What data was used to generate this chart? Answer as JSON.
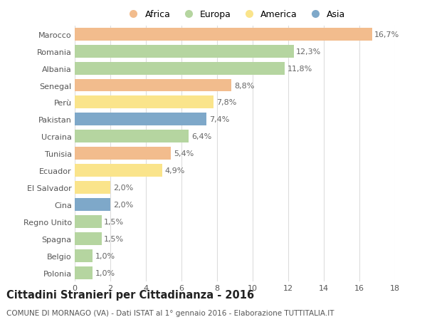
{
  "countries": [
    "Marocco",
    "Romania",
    "Albania",
    "Senegal",
    "Perù",
    "Pakistan",
    "Ucraina",
    "Tunisia",
    "Ecuador",
    "El Salvador",
    "Cina",
    "Regno Unito",
    "Spagna",
    "Belgio",
    "Polonia"
  ],
  "values": [
    16.7,
    12.3,
    11.8,
    8.8,
    7.8,
    7.4,
    6.4,
    5.4,
    4.9,
    2.0,
    2.0,
    1.5,
    1.5,
    1.0,
    1.0
  ],
  "labels": [
    "16,7%",
    "12,3%",
    "11,8%",
    "8,8%",
    "7,8%",
    "7,4%",
    "6,4%",
    "5,4%",
    "4,9%",
    "2,0%",
    "2,0%",
    "1,5%",
    "1,5%",
    "1,0%",
    "1,0%"
  ],
  "continents": [
    "Africa",
    "Europa",
    "Europa",
    "Africa",
    "America",
    "Asia",
    "Europa",
    "Africa",
    "America",
    "America",
    "Asia",
    "Europa",
    "Europa",
    "Europa",
    "Europa"
  ],
  "continent_colors": {
    "Africa": "#F2BC8D",
    "Europa": "#B5D5A0",
    "America": "#FAE48B",
    "Asia": "#7EA8C9"
  },
  "legend_order": [
    "Africa",
    "Europa",
    "America",
    "Asia"
  ],
  "title": "Cittadini Stranieri per Cittadinanza - 2016",
  "subtitle": "COMUNE DI MORNAGO (VA) - Dati ISTAT al 1° gennaio 2016 - Elaborazione TUTTITALIA.IT",
  "xlim": [
    0,
    18
  ],
  "xticks": [
    0,
    2,
    4,
    6,
    8,
    10,
    12,
    14,
    16,
    18
  ],
  "background_color": "#FFFFFF",
  "grid_color": "#DDDDDD",
  "bar_height": 0.75,
  "label_fontsize": 8,
  "tick_fontsize": 8,
  "title_fontsize": 10.5,
  "subtitle_fontsize": 7.5
}
